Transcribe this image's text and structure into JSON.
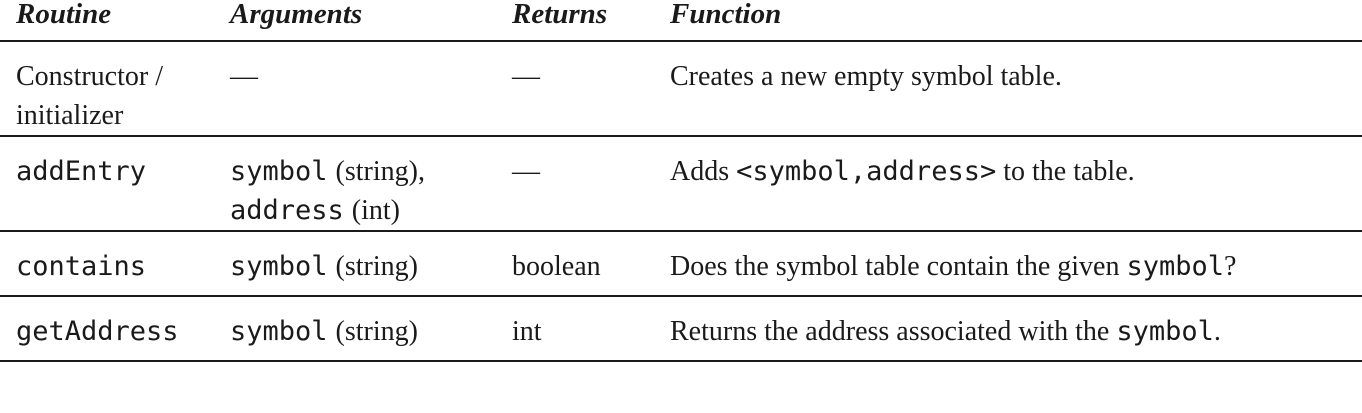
{
  "table": {
    "headers": {
      "routine": "Routine",
      "arguments": "Arguments",
      "returns": "Returns",
      "function": "Function"
    },
    "rows": [
      {
        "routine_line1": "Constructor /",
        "routine_line2": "initializer",
        "arguments": "—",
        "returns": "—",
        "function": "Creates a new empty symbol table."
      },
      {
        "routine": "addEntry",
        "arg1_name": "symbol",
        "arg1_type": "(string),",
        "arg2_name": "address",
        "arg2_type": "(int)",
        "returns": "—",
        "function_pre": "Adds",
        "function_code": "<symbol,address>",
        "function_post": "to the table."
      },
      {
        "routine": "contains",
        "arg_name": "symbol",
        "arg_type": "(string)",
        "returns": "boolean",
        "function_pre": "Does the symbol table contain the given",
        "function_code": "symbol",
        "function_post": "?"
      },
      {
        "routine": "getAddress",
        "arg_name": "symbol",
        "arg_type": "(string)",
        "returns": "int",
        "function_pre": "Returns the address associated with the",
        "function_code": "symbol",
        "function_post": "."
      }
    ]
  }
}
